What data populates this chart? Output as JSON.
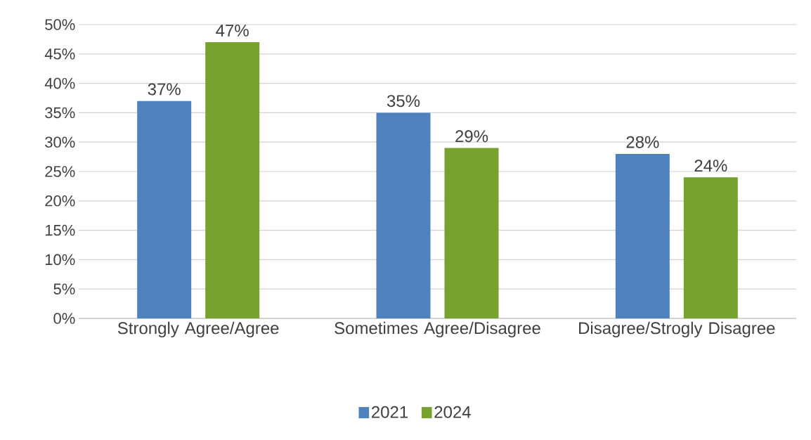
{
  "chart_data": {
    "type": "bar",
    "categories": [
      "Strongly Agree/Agree",
      "Sometimes Agree/Disagree",
      "Disagree/Strogly Disagree"
    ],
    "series": [
      {
        "name": "2021",
        "color": "#4f81bd",
        "values": [
          37,
          35,
          28
        ],
        "value_labels": [
          "37%",
          "35%",
          "28%"
        ]
      },
      {
        "name": "2024",
        "color": "#78a22f",
        "values": [
          47,
          29,
          24
        ],
        "value_labels": [
          "47%",
          "29%",
          "24%"
        ]
      }
    ],
    "ylim": [
      0,
      50
    ],
    "yticks": [
      {
        "value": 0,
        "label": "0%"
      },
      {
        "value": 5,
        "label": "5%"
      },
      {
        "value": 10,
        "label": "10%"
      },
      {
        "value": 15,
        "label": "15%"
      },
      {
        "value": 20,
        "label": "20%"
      },
      {
        "value": 25,
        "label": "25%"
      },
      {
        "value": 30,
        "label": "30%"
      },
      {
        "value": 35,
        "label": "35%"
      },
      {
        "value": 40,
        "label": "40%"
      },
      {
        "value": 45,
        "label": "45%"
      },
      {
        "value": 50,
        "label": "50%"
      }
    ],
    "grid": "y",
    "legend": "bottom"
  }
}
